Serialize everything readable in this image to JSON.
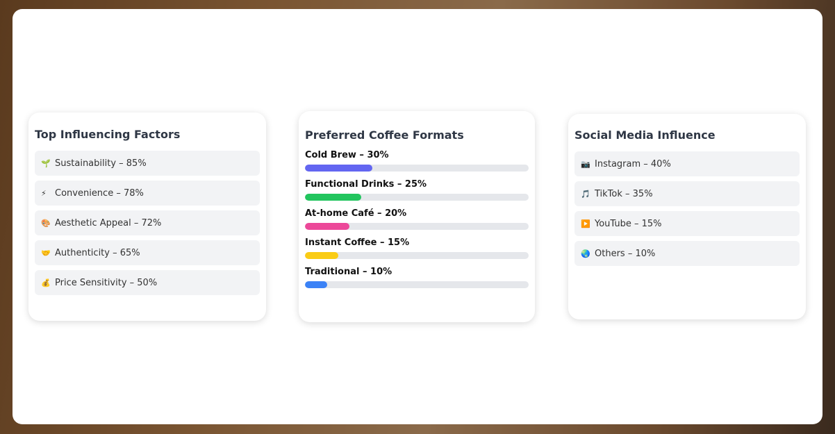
{
  "factors": {
    "title": "Top Influencing Factors",
    "items": [
      {
        "icon": "seedling-icon",
        "glyph": "🌱",
        "label": "Sustainability – 85%"
      },
      {
        "icon": "lightning-icon",
        "glyph": "⚡",
        "label": "Convenience – 78%"
      },
      {
        "icon": "palette-icon",
        "glyph": "🎨",
        "label": "Aesthetic Appeal – 72%"
      },
      {
        "icon": "handshake-icon",
        "glyph": "🤝",
        "label": "Authenticity – 65%"
      },
      {
        "icon": "money-bag-icon",
        "glyph": "💰",
        "label": "Price Sensitivity – 50%"
      }
    ]
  },
  "formats": {
    "title": "Preferred Coffee Formats",
    "items": [
      {
        "label": "Cold Brew – 30%",
        "value": 30,
        "color": "#6366f1"
      },
      {
        "label": "Functional Drinks – 25%",
        "value": 25,
        "color": "#22c55e"
      },
      {
        "label": "At-home Café – 20%",
        "value": 20,
        "color": "#ec4899"
      },
      {
        "label": "Instant Coffee – 15%",
        "value": 15,
        "color": "#facc15"
      },
      {
        "label": "Traditional – 10%",
        "value": 10,
        "color": "#3b82f6"
      }
    ]
  },
  "social": {
    "title": "Social Media Influence",
    "items": [
      {
        "icon": "camera-icon",
        "glyph": "📷",
        "label": "Instagram – 40%"
      },
      {
        "icon": "music-note-icon",
        "glyph": "🎵",
        "label": "TikTok – 35%"
      },
      {
        "icon": "play-button-icon",
        "glyph": "▶️",
        "label": "YouTube – 15%"
      },
      {
        "icon": "globe-icon",
        "glyph": "🌏",
        "label": "Others – 10%"
      }
    ]
  }
}
